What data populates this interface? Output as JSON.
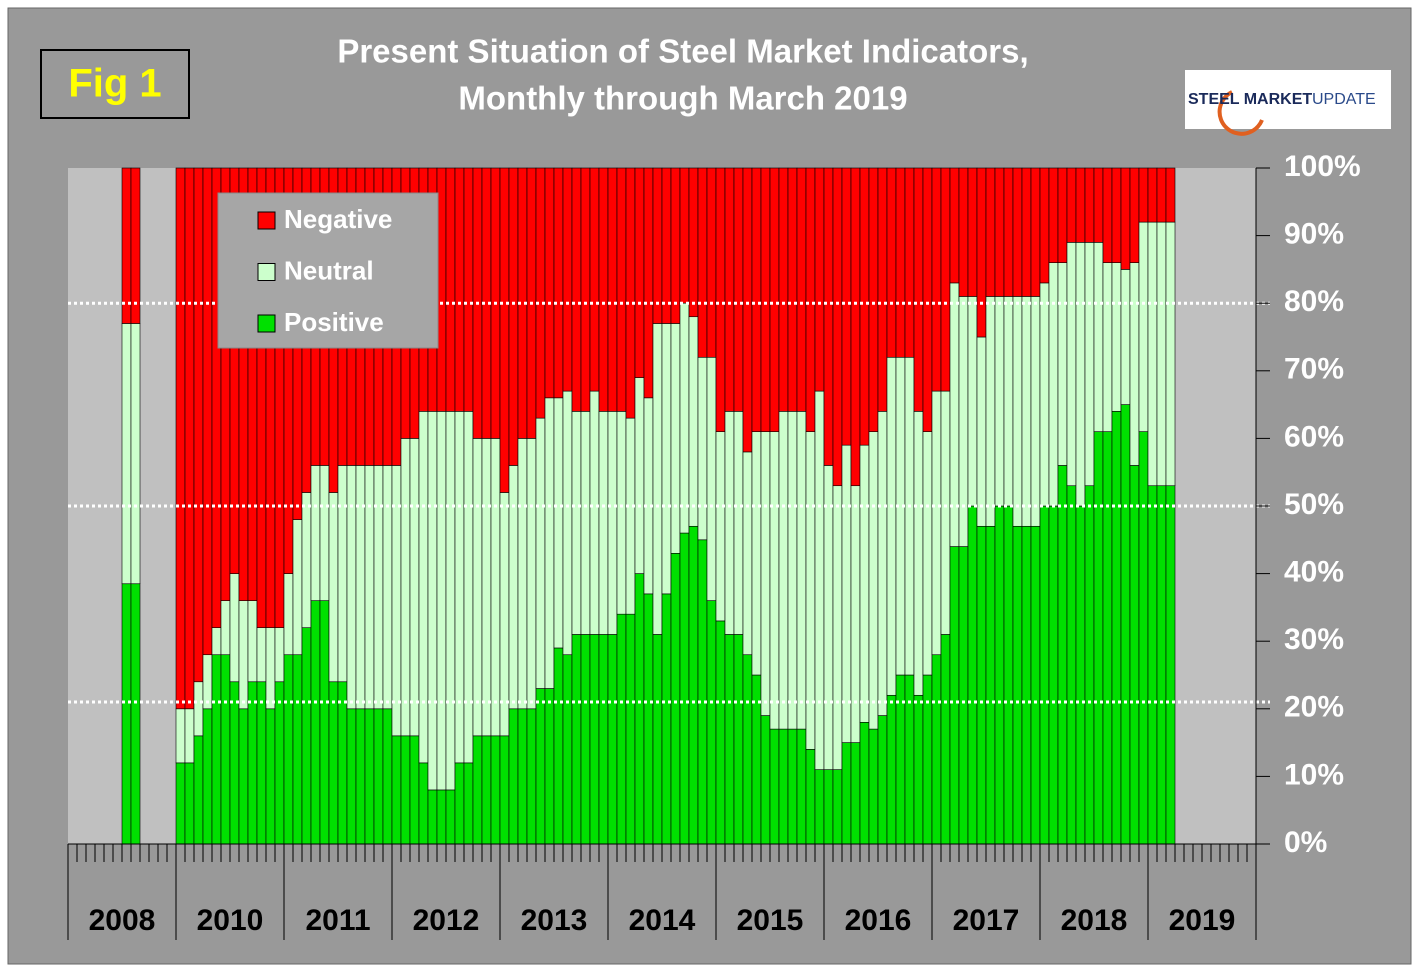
{
  "chart_data": {
    "type": "stacked_bar",
    "fig_label": "Fig 1",
    "title": "Present Situation of Steel Market Indicators,",
    "subtitle": "Monthly through March 2019",
    "logo": {
      "primary": "STEEL MARKET",
      "secondary": "UPDATE"
    },
    "categories": [
      "2008",
      "2008",
      "2008",
      "2008",
      "2008",
      "2008",
      "2008",
      "2008",
      "2008",
      "2008",
      "2008",
      "2008",
      "2010",
      "2010",
      "2010",
      "2010",
      "2010",
      "2010",
      "2010",
      "2010",
      "2010",
      "2010",
      "2010",
      "2010",
      "2011",
      "2011",
      "2011",
      "2011",
      "2011",
      "2011",
      "2011",
      "2011",
      "2011",
      "2011",
      "2011",
      "2011",
      "2012",
      "2012",
      "2012",
      "2012",
      "2012",
      "2012",
      "2012",
      "2012",
      "2012",
      "2012",
      "2012",
      "2012",
      "2013",
      "2013",
      "2013",
      "2013",
      "2013",
      "2013",
      "2013",
      "2013",
      "2013",
      "2013",
      "2013",
      "2013",
      "2014",
      "2014",
      "2014",
      "2014",
      "2014",
      "2014",
      "2014",
      "2014",
      "2014",
      "2014",
      "2014",
      "2014",
      "2015",
      "2015",
      "2015",
      "2015",
      "2015",
      "2015",
      "2015",
      "2015",
      "2015",
      "2015",
      "2015",
      "2015",
      "2016",
      "2016",
      "2016",
      "2016",
      "2016",
      "2016",
      "2016",
      "2016",
      "2016",
      "2016",
      "2016",
      "2016",
      "2017",
      "2017",
      "2017",
      "2017",
      "2017",
      "2017",
      "2017",
      "2017",
      "2017",
      "2017",
      "2017",
      "2017",
      "2018",
      "2018",
      "2018",
      "2018",
      "2018",
      "2018",
      "2018",
      "2018",
      "2018",
      "2018",
      "2018",
      "2018",
      "2019",
      "2019",
      "2019",
      "2019",
      "2019",
      "2019",
      "2019",
      "2019",
      "2019",
      "2019",
      "2019",
      "2019"
    ],
    "series": [
      {
        "name": "Positive",
        "color": "#00e000",
        "values": [
          null,
          null,
          null,
          null,
          null,
          null,
          38.5,
          38.5,
          null,
          null,
          null,
          null,
          12,
          12,
          16,
          20,
          28,
          28,
          24,
          20,
          24,
          24,
          20,
          24,
          28,
          28,
          32,
          36,
          36,
          24,
          24,
          20,
          20,
          20,
          20,
          20,
          16,
          16,
          16,
          12,
          8,
          8,
          8,
          12,
          12,
          16,
          16,
          16,
          16,
          20,
          20,
          20,
          23,
          23,
          29,
          28,
          31,
          31,
          31,
          31,
          31,
          34,
          34,
          40,
          37,
          31,
          37,
          43,
          46,
          47,
          45,
          36,
          33,
          31,
          31,
          28,
          25,
          19,
          17,
          17,
          17,
          17,
          14,
          11,
          11,
          11,
          15,
          15,
          18,
          17,
          19,
          22,
          25,
          25,
          22,
          25,
          28,
          31,
          44,
          44,
          50,
          47,
          47,
          50,
          50,
          47,
          47,
          47,
          50,
          50,
          56,
          53,
          50,
          53,
          61,
          61,
          64,
          65,
          56,
          61,
          53,
          53,
          53,
          null,
          null,
          null,
          null,
          null,
          null,
          null,
          null,
          null
        ]
      },
      {
        "name": "Neutral",
        "color": "#ccffcc",
        "values": [
          null,
          null,
          null,
          null,
          null,
          null,
          38.5,
          38.5,
          null,
          null,
          null,
          null,
          8,
          8,
          8,
          8,
          4,
          8,
          16,
          16,
          12,
          8,
          12,
          8,
          12,
          20,
          20,
          20,
          20,
          28,
          32,
          36,
          36,
          36,
          36,
          36,
          40,
          44,
          44,
          52,
          56,
          56,
          56,
          52,
          52,
          44,
          44,
          44,
          36,
          36,
          40,
          40,
          40,
          43,
          37,
          39,
          33,
          33,
          36,
          33,
          33,
          30,
          29,
          29,
          29,
          46,
          40,
          34,
          34,
          31,
          27,
          36,
          28,
          33,
          33,
          30,
          36,
          42,
          44,
          47,
          47,
          47,
          47,
          56,
          45,
          42,
          44,
          38,
          41,
          44,
          45,
          50,
          47,
          47,
          42,
          36,
          39,
          36,
          39,
          37,
          31,
          28,
          34,
          31,
          31,
          34,
          34,
          34,
          33,
          36,
          30,
          36,
          39,
          36,
          28,
          25,
          22,
          20,
          30,
          31,
          39,
          39,
          39,
          null,
          null,
          null,
          null,
          null,
          null,
          null,
          null,
          null
        ]
      },
      {
        "name": "Negative",
        "color": "#ff0000",
        "values": [
          null,
          null,
          null,
          null,
          null,
          null,
          23,
          23,
          null,
          null,
          null,
          null,
          80,
          80,
          76,
          72,
          68,
          64,
          60,
          64,
          64,
          68,
          68,
          68,
          60,
          52,
          48,
          44,
          44,
          48,
          44,
          44,
          44,
          44,
          44,
          44,
          44,
          40,
          40,
          36,
          36,
          36,
          36,
          36,
          36,
          40,
          40,
          40,
          48,
          44,
          40,
          40,
          37,
          34,
          34,
          33,
          36,
          36,
          33,
          36,
          36,
          36,
          37,
          31,
          34,
          23,
          23,
          23,
          20,
          22,
          28,
          28,
          39,
          36,
          36,
          42,
          39,
          39,
          39,
          36,
          36,
          36,
          39,
          33,
          44,
          47,
          41,
          47,
          41,
          39,
          36,
          28,
          28,
          28,
          36,
          39,
          33,
          33,
          17,
          19,
          19,
          25,
          19,
          19,
          19,
          19,
          19,
          19,
          17,
          14,
          14,
          11,
          11,
          11,
          11,
          14,
          14,
          15,
          14,
          8,
          8,
          8,
          8,
          null,
          null,
          null,
          null,
          null,
          null,
          null,
          null,
          null
        ]
      }
    ],
    "ylim": [
      0,
      100
    ],
    "yticks": [
      {
        "value": 0,
        "label": "0%"
      },
      {
        "value": 10,
        "label": "10%"
      },
      {
        "value": 20,
        "label": "20%"
      },
      {
        "value": 30,
        "label": "30%"
      },
      {
        "value": 40,
        "label": "40%"
      },
      {
        "value": 50,
        "label": "50%"
      },
      {
        "value": 60,
        "label": "60%"
      },
      {
        "value": 70,
        "label": "70%"
      },
      {
        "value": 80,
        "label": "80%"
      },
      {
        "value": 90,
        "label": "90%"
      },
      {
        "value": 100,
        "label": "100%"
      }
    ],
    "reference_lines": [
      80,
      50,
      21
    ],
    "legend": "upper left"
  }
}
